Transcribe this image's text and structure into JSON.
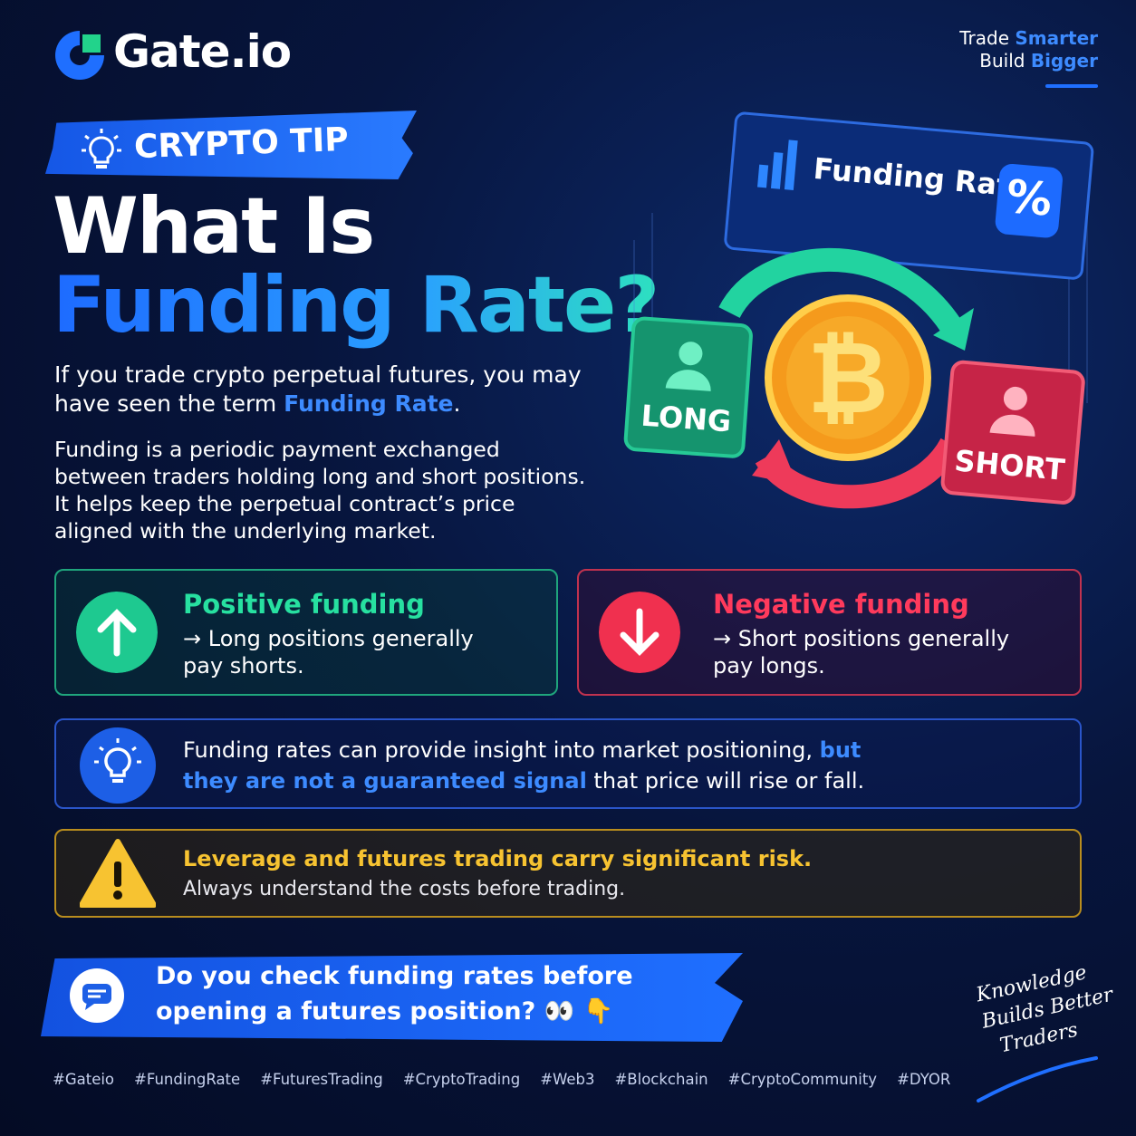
{
  "logo": {
    "name": "Gate.io"
  },
  "tagline": [
    {
      "plain": "Trade ",
      "accent": "Smarter"
    },
    {
      "plain": "Build ",
      "accent": "Bigger"
    }
  ],
  "badge": "CRYPTO TIP",
  "title": {
    "line1": "What Is",
    "line2": "Funding Rate?"
  },
  "intro": {
    "before": "If you trade crypto perpetual futures, you may have seen the term ",
    "highlight": "Funding Rate",
    "after": "."
  },
  "explanation": "Funding is a periodic payment exchanged between traders holding long and short positions. It helps keep the perpetual contract’s price aligned with the underlying market.",
  "illustration": {
    "panel": "Funding Rate",
    "percent": "%",
    "coin": "₿",
    "long": "LONG",
    "short": "SHORT"
  },
  "cards": [
    {
      "title": "Positive funding",
      "text": "→ Long positions generally pay shorts."
    },
    {
      "title": "Negative funding",
      "text": "→ Short positions generally pay longs."
    }
  ],
  "insight": {
    "before": "Funding rates can provide insight into market positioning, ",
    "bold": "but they are not a guaranteed signal",
    "after": " that price will rise or fall."
  },
  "warning": {
    "title": "Leverage and futures trading carry significant risk.",
    "text": "Always understand the costs before trading."
  },
  "question": "Do you check funding rates before opening a futures position? 👀 👇",
  "slogan": [
    "Knowledge",
    "Builds Better",
    "Traders"
  ],
  "hashtags": [
    "#Gateio",
    "#FundingRate",
    "#FuturesTrading",
    "#CryptoTrading",
    "#Web3",
    "#Blockchain",
    "#CryptoCommunity",
    "#DYOR"
  ]
}
